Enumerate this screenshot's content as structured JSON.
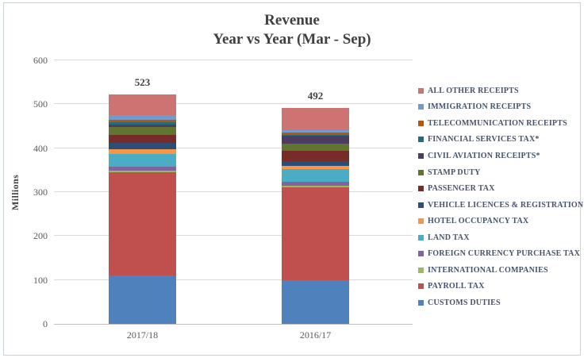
{
  "title": {
    "line1": "Revenue",
    "line2": "Year vs Year (Mar - Sep)"
  },
  "chart_data": {
    "type": "bar",
    "stacked": true,
    "title": "Revenue Year vs Year (Mar - Sep)",
    "categories": [
      "2017/18",
      "2016/17"
    ],
    "totals": [
      523,
      492
    ],
    "ylabel": "Millions",
    "ylim": [
      0,
      600
    ],
    "yticks": [
      600,
      500,
      400,
      300,
      200,
      100,
      0
    ],
    "grid": "horizontal",
    "legend_position": "right",
    "series": [
      {
        "name": "CUSTOMS DUTIES",
        "color": "#4F81BD",
        "values": [
          110,
          100
        ]
      },
      {
        "name": "PAYROLL TAX",
        "color": "#C0504D",
        "values": [
          235,
          210
        ]
      },
      {
        "name": "INTERNATIONAL COMPANIES",
        "color": "#9BBB59",
        "values": [
          4,
          4
        ]
      },
      {
        "name": "FOREIGN CURRENCY PURCHASE TAX",
        "color": "#8064A2",
        "values": [
          9,
          10
        ]
      },
      {
        "name": "LAND TAX",
        "color": "#4BACC6",
        "values": [
          28,
          29
        ]
      },
      {
        "name": "HOTEL OCCUPANCY TAX",
        "color": "#F79646",
        "values": [
          11,
          6
        ]
      },
      {
        "name": "VEHICLE LICENCES & REGISTRATION",
        "color": "#2C4D75",
        "values": [
          16,
          12
        ]
      },
      {
        "name": "PASSENGER TAX",
        "color": "#772C2A",
        "values": [
          17,
          24
        ]
      },
      {
        "name": "STAMP DUTY",
        "color": "#5F7530",
        "values": [
          18,
          15
        ]
      },
      {
        "name": "CIVIL AVIATION RECEIPTS*",
        "color": "#4D3B62",
        "values": [
          5,
          18
        ]
      },
      {
        "name": "FINANCIAL SERVICES TAX*",
        "color": "#276A7C",
        "values": [
          6,
          3
        ]
      },
      {
        "name": "TELECOMMUNICATION RECEIPTS",
        "color": "#B65708",
        "values": [
          6,
          5
        ]
      },
      {
        "name": "IMMIGRATION RECEIPTS",
        "color": "#729ACA",
        "values": [
          11,
          5
        ]
      },
      {
        "name": "ALL OTHER RECEIPTS",
        "color": "#CD7371",
        "values": [
          47,
          51
        ]
      }
    ]
  }
}
